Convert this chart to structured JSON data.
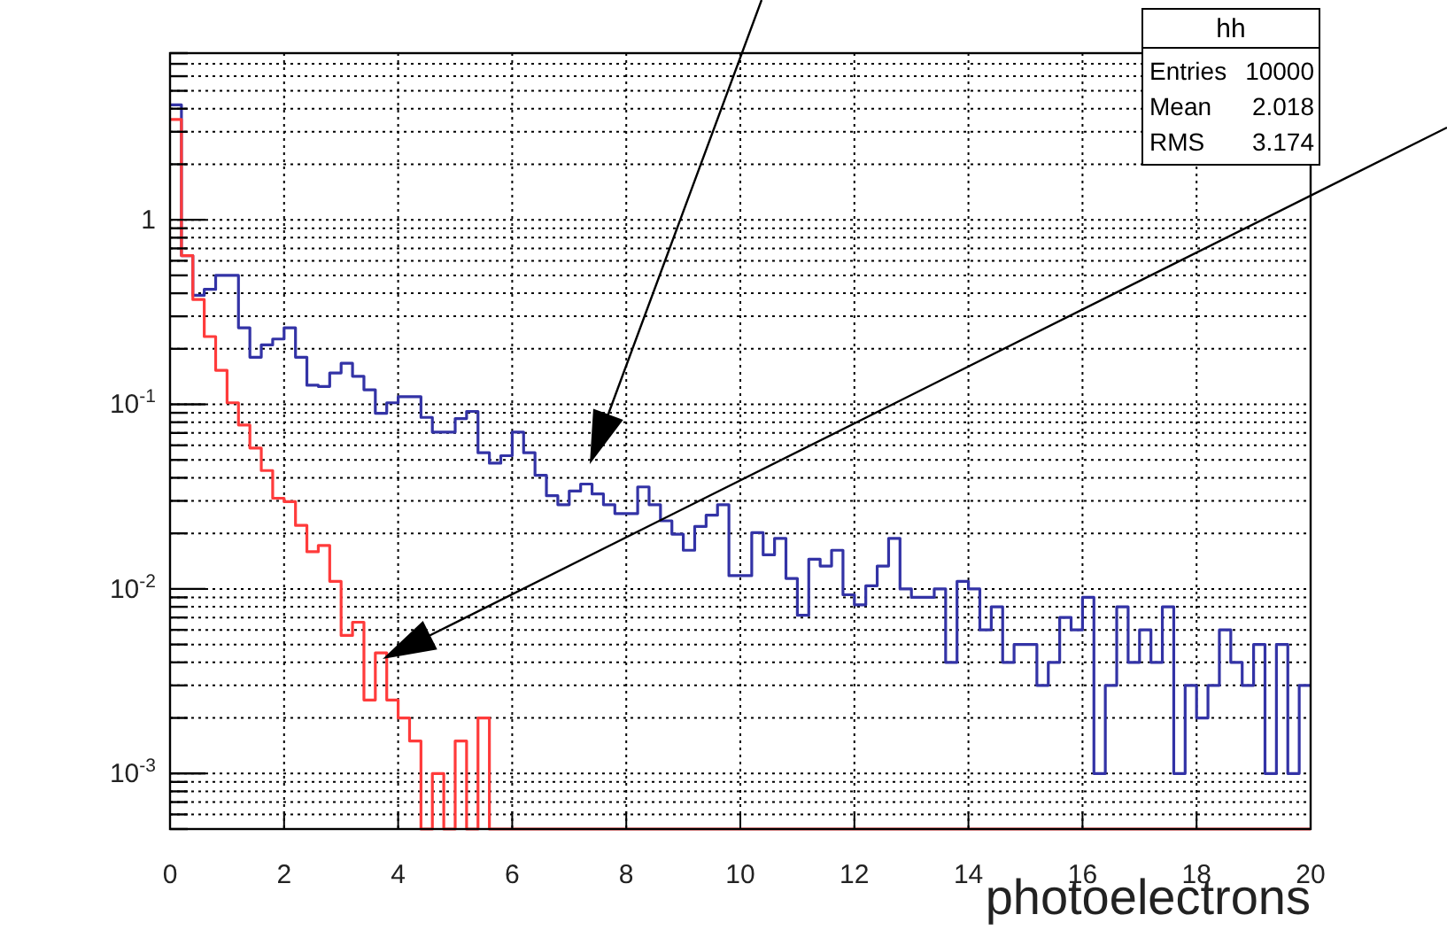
{
  "chart_data": {
    "type": "histogram",
    "xlabel": "photoelectrons",
    "bins": [
      0,
      0.2,
      0.4,
      0.6,
      0.8,
      1,
      1.2,
      1.4,
      1.6,
      1.8,
      2,
      2.2,
      2.4,
      2.6,
      2.8,
      3,
      3.2,
      3.4,
      3.6,
      3.8,
      4,
      4.2,
      4.4,
      4.6,
      4.8,
      5,
      5.2,
      5.4,
      5.6,
      5.8,
      6,
      6.2,
      6.4,
      6.6,
      6.8,
      7,
      7.2,
      7.4,
      7.6,
      7.8,
      8,
      8.2,
      8.4,
      8.6,
      8.8,
      9,
      9.2,
      9.4,
      9.6,
      9.8,
      10,
      10.2,
      10.4,
      10.6,
      10.8,
      11,
      11.2,
      11.4,
      11.6,
      11.8,
      12,
      12.2,
      12.4,
      12.6,
      12.8,
      13,
      13.2,
      13.4,
      13.6,
      13.8,
      14,
      14.2,
      14.4,
      14.6,
      14.8,
      15,
      15.2,
      15.4,
      15.6,
      15.8,
      16,
      16.2,
      16.4,
      16.6,
      16.8,
      17,
      17.2,
      17.4,
      17.6,
      17.8,
      18,
      18.2,
      18.4,
      18.6,
      18.8,
      19,
      19.2,
      19.4,
      19.6,
      19.8,
      20
    ],
    "series": [
      {
        "color": "#3333a6",
        "values": [
          4.2,
          0.64,
          0.39,
          0.42,
          0.5,
          0.5,
          0.26,
          0.18,
          0.21,
          0.226,
          0.26,
          0.18,
          0.127,
          0.125,
          0.148,
          0.167,
          0.142,
          0.12,
          0.0895,
          0.102,
          0.11,
          0.11,
          0.085,
          0.0707,
          0.0707,
          0.0838,
          0.0916,
          0.0547,
          0.048,
          0.0527,
          0.0707,
          0.0547,
          0.0413,
          0.032,
          0.0286,
          0.0339,
          0.037,
          0.0327,
          0.0286,
          0.0256,
          0.0256,
          0.0357,
          0.0286,
          0.0234,
          0.0198,
          0.0162,
          0.0218,
          0.0251,
          0.0286,
          0.0118,
          0.0118,
          0.0202,
          0.0153,
          0.0188,
          0.0114,
          0.0072,
          0.0145,
          0.0133,
          0.0162,
          0.0093,
          0.0082,
          0.0104,
          0.0133,
          0.0188,
          0.01,
          0.009,
          0.009,
          0.01,
          0.004,
          0.011,
          0.01,
          0.006,
          0.008,
          0.004,
          0.005,
          0.005,
          0.003,
          0.004,
          0.007,
          0.006,
          0.009,
          0.001,
          0.003,
          0.008,
          0.004,
          0.006,
          0.004,
          0.008,
          0.001,
          0.003,
          0.002,
          0.003,
          0.006,
          0.004,
          0.003,
          0.005,
          0.001,
          0.005,
          0.001,
          0.003
        ]
      },
      {
        "color": "#ff3b3b",
        "values": [
          3.5,
          0.64,
          0.37,
          0.233,
          0.153,
          0.102,
          0.0773,
          0.058,
          0.0438,
          0.031,
          0.0297,
          0.0221,
          0.0159,
          0.0172,
          0.011,
          0.0056,
          0.0066,
          0.0025,
          0.0045,
          0.0025,
          0.002,
          0.0015,
          0.0005,
          0.001,
          0.0005,
          0.0015,
          0.0005,
          0.002,
          0.0005,
          0.0005,
          0.0005,
          0.0005,
          0.0005,
          0.0005,
          0.0005,
          0.0005,
          0.0005,
          0.0005,
          0.0005,
          0.0005,
          0.0005,
          0.0005,
          0.0005,
          0.0005,
          0.0005,
          0.0005,
          0.0005,
          0.0005,
          0.0005,
          0.0005,
          0.0005,
          0.0005,
          0.0005,
          0.0005,
          0.0005,
          0.0005,
          0.0005,
          0.0005,
          0.0005,
          0.0005,
          0.0005,
          0.0005,
          0.0005,
          0.0005,
          0.0005,
          0.0005,
          0.0005,
          0.0005,
          0.0005,
          0.0005,
          0.0005,
          0.0005,
          0.0005,
          0.0005,
          0.0005,
          0.0005,
          0.0005,
          0.0005,
          0.0005,
          0.0005,
          0.0005,
          0.0005,
          0.0005,
          0.0005,
          0.0005,
          0.0005,
          0.0005,
          0.0005,
          0.0005,
          0.0005,
          0.0005,
          0.0005,
          0.0005,
          0.0005,
          0.0005,
          0.0005,
          0.0005,
          0.0005,
          0.0005,
          0.0005
        ]
      }
    ],
    "log": "y",
    "grid": true,
    "xlim": [
      0,
      20
    ],
    "xticks": [
      0,
      2,
      4,
      6,
      8,
      10,
      12,
      14,
      16,
      18,
      20
    ],
    "ylim": [
      0.0005,
      8
    ],
    "yticks": [
      {
        "value": 0.0005,
        "label": null
      },
      {
        "value": 0.0006,
        "label": null
      },
      {
        "value": 0.0007,
        "label": null
      },
      {
        "value": 0.0008,
        "label": null
      },
      {
        "value": 0.0009,
        "label": null
      },
      {
        "value": 0.001,
        "label": "10$^{-3}$"
      },
      {
        "value": 0.002,
        "label": null
      },
      {
        "value": 0.003,
        "label": null
      },
      {
        "value": 0.004,
        "label": null
      },
      {
        "value": 0.005,
        "label": null
      },
      {
        "value": 0.006,
        "label": null
      },
      {
        "value": 0.007,
        "label": null
      },
      {
        "value": 0.008,
        "label": null
      },
      {
        "value": 0.009,
        "label": null
      },
      {
        "value": 0.01,
        "label": "10$^{-2}$"
      },
      {
        "value": 0.02,
        "label": null
      },
      {
        "value": 0.03,
        "label": null
      },
      {
        "value": 0.04,
        "label": null
      },
      {
        "value": 0.05,
        "label": null
      },
      {
        "value": 0.06,
        "label": null
      },
      {
        "value": 0.07,
        "label": null
      },
      {
        "value": 0.08,
        "label": null
      },
      {
        "value": 0.09,
        "label": null
      },
      {
        "value": 0.1,
        "label": "10$^{-1}$"
      },
      {
        "value": 0.2,
        "label": null
      },
      {
        "value": 0.3,
        "label": null
      },
      {
        "value": 0.4,
        "label": null
      },
      {
        "value": 0.5,
        "label": null
      },
      {
        "value": 0.6,
        "label": null
      },
      {
        "value": 0.7,
        "label": null
      },
      {
        "value": 0.8,
        "label": null
      },
      {
        "value": 0.9,
        "label": null
      },
      1,
      {
        "value": 2,
        "label": null
      },
      {
        "value": 3,
        "label": null
      },
      {
        "value": 4,
        "label": null
      },
      {
        "value": 5,
        "label": null
      },
      {
        "value": 6,
        "label": null
      },
      {
        "value": 7,
        "label": null
      },
      {
        "value": 8,
        "label": null
      }
    ],
    "annotations": [
      "hh",
      "Entries 10000",
      "Mean 2.018",
      "RMS 3.174"
    ]
  }
}
